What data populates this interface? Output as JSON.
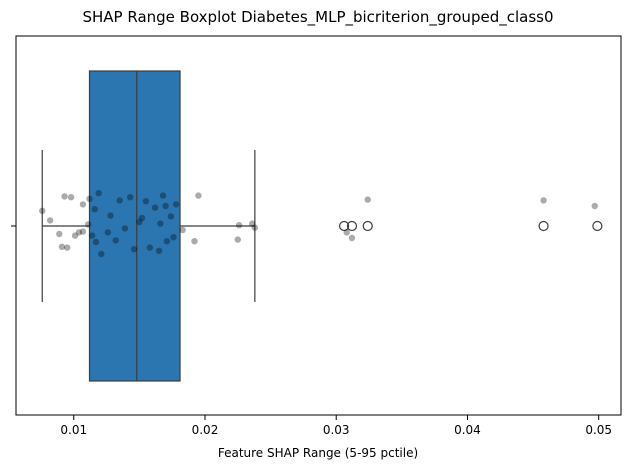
{
  "chart_data": {
    "type": "boxplot",
    "title": "SHAP Range Boxplot Diabetes_MLP_bicriterion_grouped_class0",
    "xlabel": "Feature SHAP Range (5-95 pctile)",
    "ylabel": "",
    "xlim": [
      0.0056,
      0.0517
    ],
    "xticks": [
      0.01,
      0.02,
      0.03,
      0.04,
      0.05
    ],
    "xtick_labels": [
      "0.01",
      "0.02",
      "0.03",
      "0.04",
      "0.05"
    ],
    "ytick_labels": [
      ""
    ],
    "grid": false,
    "box": {
      "whisker_low": 0.0076,
      "q1": 0.0112,
      "median": 0.0148,
      "q3": 0.0181,
      "whisker_high": 0.0238,
      "color": "#2b75b0"
    },
    "outliers": [
      0.0306,
      0.0312,
      0.0324,
      0.0458,
      0.0499
    ],
    "points": [
      {
        "x": 0.0091,
        "y": -0.26
      },
      {
        "x": 0.0095,
        "y": -0.27
      },
      {
        "x": 0.0101,
        "y": -0.12
      },
      {
        "x": 0.0104,
        "y": -0.08
      },
      {
        "x": 0.0107,
        "y": -0.07
      },
      {
        "x": 0.0111,
        "y": 0.02
      },
      {
        "x": 0.0114,
        "y": -0.12
      },
      {
        "x": 0.0117,
        "y": -0.2
      },
      {
        "x": 0.0121,
        "y": -0.35
      },
      {
        "x": 0.0126,
        "y": -0.08
      },
      {
        "x": 0.0132,
        "y": -0.18
      },
      {
        "x": 0.0139,
        "y": -0.03
      },
      {
        "x": 0.0146,
        "y": -0.29
      },
      {
        "x": 0.0152,
        "y": 0.1
      },
      {
        "x": 0.0158,
        "y": -0.27
      },
      {
        "x": 0.0165,
        "y": -0.31
      },
      {
        "x": 0.0171,
        "y": -0.19
      },
      {
        "x": 0.0176,
        "y": -0.14
      },
      {
        "x": 0.0183,
        "y": -0.05
      },
      {
        "x": 0.0076,
        "y": 0.19
      },
      {
        "x": 0.0082,
        "y": 0.07
      },
      {
        "x": 0.0089,
        "y": -0.1
      },
      {
        "x": 0.0098,
        "y": 0.36
      },
      {
        "x": 0.0112,
        "y": 0.34
      },
      {
        "x": 0.0119,
        "y": 0.41
      },
      {
        "x": 0.0128,
        "y": 0.13
      },
      {
        "x": 0.0135,
        "y": 0.32
      },
      {
        "x": 0.0143,
        "y": 0.36
      },
      {
        "x": 0.0155,
        "y": 0.31
      },
      {
        "x": 0.0162,
        "y": 0.23
      },
      {
        "x": 0.0168,
        "y": 0.38
      },
      {
        "x": 0.0174,
        "y": 0.12
      },
      {
        "x": 0.0178,
        "y": 0.27
      },
      {
        "x": 0.0195,
        "y": 0.38
      },
      {
        "x": 0.0192,
        "y": -0.19
      },
      {
        "x": 0.0225,
        "y": -0.17
      },
      {
        "x": 0.0226,
        "y": 0.01
      },
      {
        "x": 0.0236,
        "y": 0.03
      },
      {
        "x": 0.0238,
        "y": -0.02
      },
      {
        "x": 0.0308,
        "y": -0.08
      },
      {
        "x": 0.0312,
        "y": -0.15
      },
      {
        "x": 0.0324,
        "y": 0.33
      },
      {
        "x": 0.0458,
        "y": 0.32
      },
      {
        "x": 0.0497,
        "y": 0.25
      },
      {
        "x": 0.0093,
        "y": 0.37
      },
      {
        "x": 0.0107,
        "y": 0.27
      },
      {
        "x": 0.0116,
        "y": 0.21
      },
      {
        "x": 0.015,
        "y": 0.05
      },
      {
        "x": 0.0166,
        "y": 0.03
      },
      {
        "x": 0.017,
        "y": 0.25
      }
    ]
  }
}
